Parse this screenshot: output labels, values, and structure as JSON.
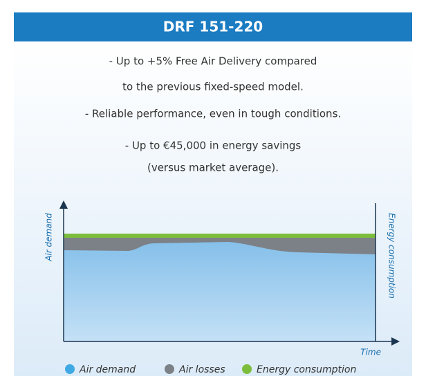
{
  "header": {
    "title": "DRF 151-220"
  },
  "bullets": [
    "- Up to +5% Free Air Delivery compared",
    "to the previous fixed-speed model.",
    "- Reliable performance, even in tough conditions.",
    "- Up to €45,000 in energy savings",
    "(versus market average)."
  ],
  "diagram": {
    "y_label": "Air demand",
    "y2_label": "Energy consumption",
    "x_label": "Time"
  },
  "legend": [
    "Air demand",
    "Air losses",
    "Energy consumption"
  ]
}
